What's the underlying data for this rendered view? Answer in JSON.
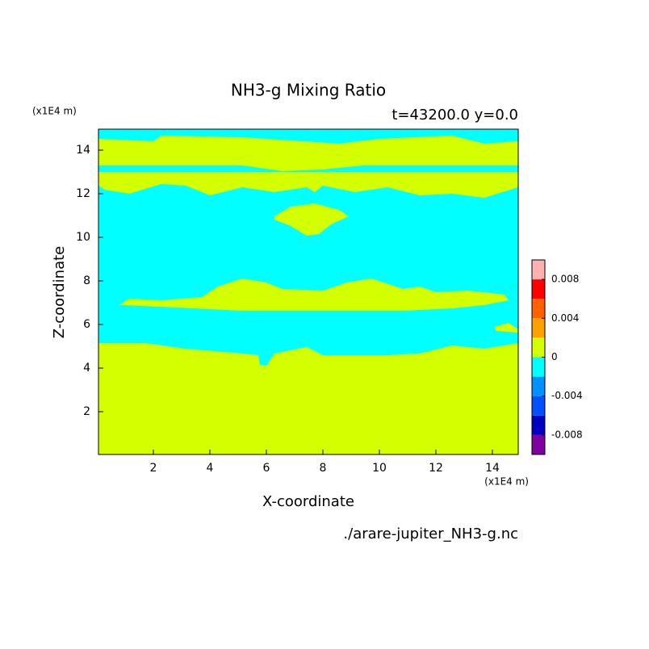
{
  "chart_data": {
    "type": "contour",
    "title": "NH3-g Mixing Ratio",
    "subtitle": "t=43200.0 y=0.0",
    "x_label": "X-coordinate",
    "y_label": "Z-coordinate",
    "x_unit": "(x1E4 m)",
    "y_unit": "(x1E4 m)",
    "source": "./arare-jupiter_NH3-g.nc",
    "xlim": [
      0,
      15
    ],
    "xticks": [
      2,
      4,
      6,
      8,
      10,
      12,
      14
    ],
    "ylim": [
      0,
      15
    ],
    "yticks": [
      2,
      4,
      6,
      8,
      10,
      12,
      14
    ],
    "colorbar": {
      "levels": [
        -0.01,
        -0.008,
        -0.006,
        -0.004,
        -0.002,
        0,
        0.002,
        0.004,
        0.006,
        0.008,
        0.01
      ],
      "colors": [
        "#8000a0",
        "#0000c0",
        "#0050ff",
        "#0090ff",
        "#00ffff",
        "#d4ff00",
        "#ffa000",
        "#ff6000",
        "#ff0000",
        "#ffb0b0"
      ],
      "lim": [
        -0.01,
        0.01
      ],
      "ticks": [
        -0.008,
        -0.004,
        0,
        0.004,
        0.008
      ]
    }
  }
}
